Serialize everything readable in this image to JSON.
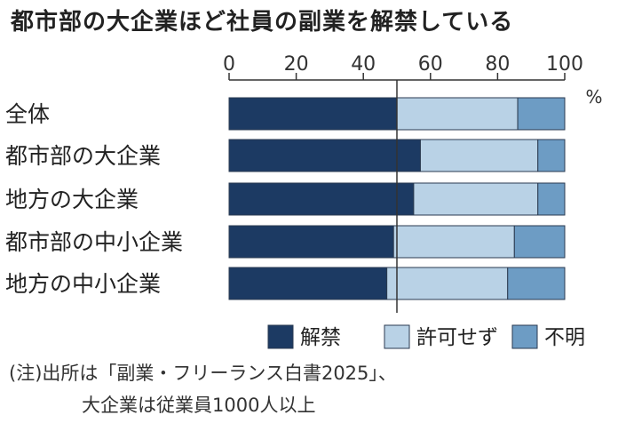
{
  "chart_data": {
    "type": "bar",
    "orientation": "horizontal",
    "stacked": true,
    "title": "都市部の大企業ほど社員の副業を解禁している",
    "unit_label": "%",
    "xlim": [
      0,
      100
    ],
    "xticks": [
      "0",
      "20",
      "40",
      "60",
      "80",
      "100"
    ],
    "categories": [
      "全体",
      "都市部の大企業",
      "地方の大企業",
      "都市部の中小企業",
      "地方の中小企業"
    ],
    "series": [
      {
        "name": "解禁",
        "color": "#1c3a63",
        "values": [
          50,
          57,
          55,
          49,
          47
        ]
      },
      {
        "name": "許可せず",
        "color": "#b9d2e6",
        "values": [
          36,
          35,
          37,
          36,
          36
        ]
      },
      {
        "name": "不明",
        "color": "#6d9cc4",
        "values": [
          14,
          8,
          8,
          15,
          17
        ]
      }
    ],
    "reference_line": 50,
    "legend_position": "bottom-right",
    "grid": false
  },
  "notes": {
    "line1": "(注)出所は「副業・フリーランス白書2025」、",
    "line2": "大企業は従業員1000人以上"
  }
}
